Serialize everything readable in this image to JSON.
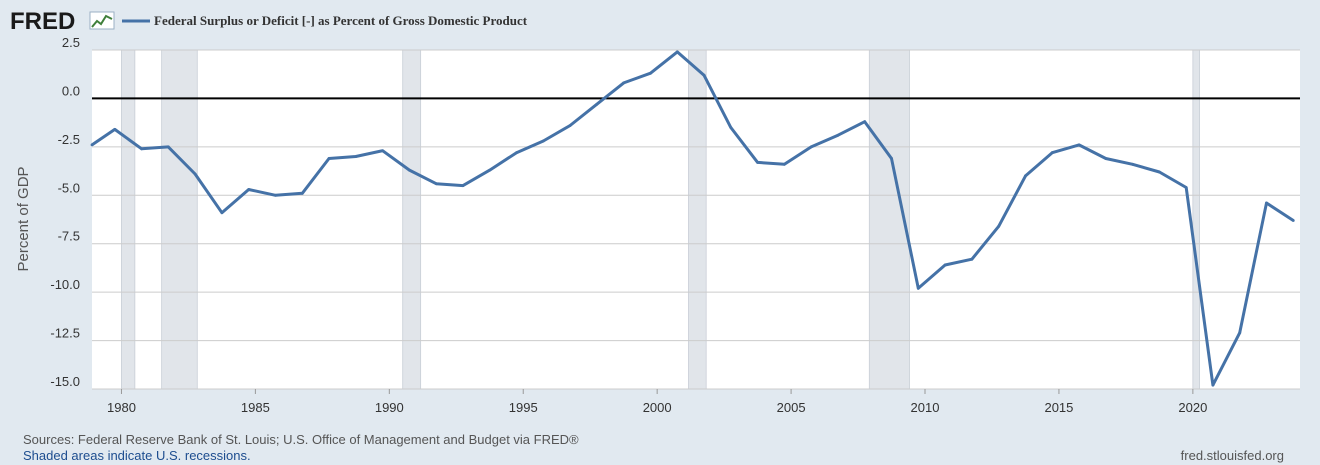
{
  "header": {
    "logo_text": "FRED",
    "logo_icon": "fred-chart-icon"
  },
  "colors": {
    "background": "#e1e9f0",
    "plot_background": "#ffffff",
    "line": "#4572a7",
    "recession_fill": "#e1e5ea",
    "zero_line": "#000000",
    "grid": "#cccccc"
  },
  "chart_data": {
    "type": "line",
    "title": "",
    "legend": [
      "Federal Surplus or Deficit [-] as Percent of Gross Domestic Product"
    ],
    "legend_position": "top-left",
    "xlabel": "",
    "ylabel": "Percent of GDP",
    "xlim": [
      1978.9,
      2024.0
    ],
    "ylim": [
      -15.0,
      2.5
    ],
    "y_ticks": [
      2.5,
      0.0,
      -2.5,
      -5.0,
      -7.5,
      -10.0,
      -12.5,
      -15.0
    ],
    "y_tick_labels": [
      "2.5",
      "0.0",
      "-2.5",
      "-5.0",
      "-7.5",
      "-10.0",
      "-12.5",
      "-15.0"
    ],
    "x_ticks": [
      1980,
      1985,
      1990,
      1995,
      2000,
      2005,
      2010,
      2015,
      2020
    ],
    "x_tick_labels": [
      "1980",
      "1985",
      "1990",
      "1995",
      "2000",
      "2005",
      "2010",
      "2015",
      "2020"
    ],
    "reference_line": 0.0,
    "grid": true,
    "recessions": [
      [
        1980.0,
        1980.5
      ],
      [
        1981.5,
        1982.83
      ],
      [
        1990.5,
        1991.17
      ],
      [
        2001.17,
        2001.83
      ],
      [
        2007.92,
        2009.42
      ],
      [
        2020.0,
        2020.25
      ]
    ],
    "series": [
      {
        "name": "Federal Surplus or Deficit [-] as Percent of Gross Domestic Product",
        "x": [
          1978.9,
          1979.75,
          1980.75,
          1981.75,
          1982.75,
          1983.75,
          1984.75,
          1985.75,
          1986.75,
          1987.75,
          1988.75,
          1989.75,
          1990.75,
          1991.75,
          1992.75,
          1993.75,
          1994.75,
          1995.75,
          1996.75,
          1997.75,
          1998.75,
          1999.75,
          2000.75,
          2001.75,
          2002.75,
          2003.75,
          2004.75,
          2005.75,
          2006.75,
          2007.75,
          2008.75,
          2009.75,
          2010.75,
          2011.75,
          2012.75,
          2013.75,
          2014.75,
          2015.75,
          2016.75,
          2017.75,
          2018.75,
          2019.75,
          2020.75,
          2021.75,
          2022.75,
          2023.75
        ],
        "values": [
          -2.4,
          -1.6,
          -2.6,
          -2.5,
          -3.9,
          -5.9,
          -4.7,
          -5.0,
          -4.9,
          -3.1,
          -3.0,
          -2.7,
          -3.7,
          -4.4,
          -4.5,
          -3.7,
          -2.8,
          -2.2,
          -1.4,
          -0.3,
          0.8,
          1.3,
          2.4,
          1.2,
          -1.5,
          -3.3,
          -3.4,
          -2.5,
          -1.9,
          -1.2,
          -3.1,
          -9.8,
          -8.6,
          -8.3,
          -6.6,
          -4.0,
          -2.8,
          -2.4,
          -3.1,
          -3.4,
          -3.8,
          -4.6,
          -14.8,
          -12.1,
          -5.4,
          -6.3
        ]
      }
    ]
  },
  "footer": {
    "sources": "Sources: Federal Reserve Bank of St. Louis; U.S. Office of Management and Budget via FRED®",
    "recession_note": "Shaded areas indicate U.S. recessions.",
    "site": "fred.stlouisfed.org"
  }
}
